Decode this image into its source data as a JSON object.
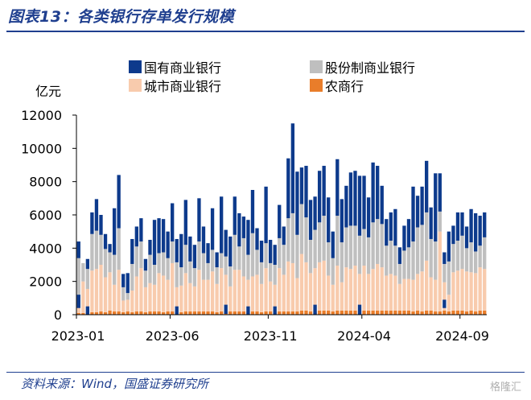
{
  "header": {
    "title": "图表13：各类银行存单发行规模"
  },
  "footer": {
    "source": "资料来源：Wind，国盛证券研究所",
    "watermark": "格隆汇"
  },
  "chart_data": {
    "type": "bar",
    "stacked": true,
    "ylabel": "亿元",
    "ylim": [
      0,
      12000
    ],
    "yticks": [
      0,
      2000,
      4000,
      6000,
      8000,
      10000,
      12000
    ],
    "xtick_labels": [
      "2023-01",
      "2023-06",
      "2023-11",
      "2024-04",
      "2024-09"
    ],
    "legend_position": "top",
    "series": [
      {
        "name": "农商行",
        "color": "#e97d2a",
        "values": [
          100,
          100,
          150,
          150,
          150,
          200,
          150,
          250,
          200,
          200,
          150,
          200,
          150,
          200,
          200,
          150,
          200,
          200,
          200,
          150,
          200,
          200,
          150,
          150,
          200,
          200,
          200,
          200,
          200,
          200,
          200,
          150,
          200,
          200,
          200,
          200,
          200,
          200,
          200,
          200,
          200,
          150,
          200,
          200,
          200,
          200,
          200,
          200,
          200,
          200,
          250,
          250,
          200,
          200,
          250,
          250,
          250,
          200,
          250,
          250,
          250,
          250,
          250,
          250,
          250,
          250,
          250,
          250,
          250,
          250,
          250,
          250,
          250,
          250,
          250,
          200,
          250,
          200,
          250,
          250,
          200,
          200,
          250,
          200,
          250,
          250,
          250,
          200,
          250,
          200,
          250,
          250
        ]
      },
      {
        "name": "城市商业银行",
        "color": "#f8cbad",
        "values": [
          1000,
          1900,
          1400,
          2500,
          2600,
          2800,
          2100,
          2300,
          1600,
          2500,
          700,
          700,
          1300,
          2100,
          2600,
          1500,
          1700,
          1600,
          2300,
          2200,
          1900,
          2900,
          1500,
          1600,
          2300,
          1700,
          1500,
          2500,
          1900,
          1900,
          2400,
          1700,
          2600,
          2200,
          1500,
          2500,
          2500,
          2100,
          1900,
          2100,
          2200,
          1700,
          2600,
          1800,
          1600,
          2600,
          2200,
          3000,
          2900,
          2000,
          3400,
          2900,
          2300,
          2600,
          2900,
          3000,
          2100,
          1600,
          2700,
          1700,
          2600,
          2500,
          2700,
          2200,
          2700,
          2200,
          2500,
          2800,
          2600,
          2100,
          2200,
          2100,
          1600,
          1900,
          1900,
          1900,
          2200,
          2400,
          3000,
          2000,
          1900,
          4800,
          1700,
          1000,
          2300,
          2400,
          2500,
          2400,
          2300,
          2300,
          2600,
          2500
        ]
      },
      {
        "name": "股份制商业银行",
        "color": "#bfbfbf",
        "values": [
          2300,
          1100,
          1200,
          2200,
          2300,
          1800,
          1700,
          1200,
          1800,
          2500,
          800,
          400,
          1600,
          1800,
          1600,
          1000,
          1700,
          1200,
          1200,
          1400,
          1300,
          1300,
          1500,
          1100,
          1700,
          1300,
          1100,
          1700,
          1600,
          1000,
          1300,
          1000,
          900,
          1100,
          1200,
          2100,
          1400,
          2300,
          1500,
          2600,
          1500,
          1300,
          1500,
          1100,
          1200,
          1800,
          1800,
          2600,
          3000,
          2600,
          3000,
          2700,
          2000,
          2300,
          2400,
          2700,
          2000,
          1600,
          3000,
          2400,
          2400,
          2600,
          2400,
          2300,
          2200,
          2200,
          2800,
          2700,
          2600,
          1800,
          2000,
          1800,
          1200,
          1700,
          1900,
          2300,
          2800,
          2800,
          2900,
          2300,
          2300,
          1200,
          1100,
          2000,
          1700,
          1800,
          2000,
          1400,
          1800,
          1300,
          1300,
          1900
        ]
      },
      {
        "name": "国有商业银行",
        "color": "#0d3a8c",
        "values": [
          1000,
          0,
          600,
          1300,
          1900,
          1200,
          900,
          500,
          2800,
          3200,
          800,
          1200,
          1500,
          1200,
          1400,
          700,
          900,
          2700,
          2100,
          2000,
          1600,
          2300,
          1400,
          2000,
          2700,
          1500,
          1400,
          2600,
          1600,
          1200,
          2500,
          900,
          3400,
          1600,
          1800,
          2300,
          2000,
          1300,
          2100,
          2600,
          1300,
          1300,
          3400,
          1400,
          1200,
          2000,
          1100,
          3600,
          5400,
          3800,
          2200,
          3100,
          2400,
          2000,
          3100,
          3000,
          2700,
          1600,
          3400,
          2600,
          2500,
          3200,
          3300,
          3600,
          3200,
          2400,
          3600,
          3200,
          2300,
          1600,
          1700,
          2200,
          1000,
          1500,
          1700,
          3300,
          1900,
          2300,
          3100,
          1900,
          4100,
          2300,
          700,
          1800,
          1100,
          1700,
          1400,
          1300,
          2000,
          2300,
          1800,
          1500
        ]
      }
    ],
    "overlay_series": {
      "name": "国有商业银行",
      "color": "#0d3a8c",
      "note": "",
      "markers": [
        {
          "index": 0,
          "low": 400,
          "high": 1200
        },
        {
          "index": 2,
          "low": 0,
          "high": 500
        },
        {
          "index": 22,
          "low": 0,
          "high": 500
        },
        {
          "index": 33,
          "low": 50,
          "high": 600
        },
        {
          "index": 38,
          "low": 0,
          "high": 500
        },
        {
          "index": 44,
          "low": 0,
          "high": 500
        },
        {
          "index": 53,
          "low": 0,
          "high": 600
        },
        {
          "index": 63,
          "low": 0,
          "high": 600
        },
        {
          "index": 82,
          "low": 400,
          "high": 900
        }
      ]
    }
  }
}
